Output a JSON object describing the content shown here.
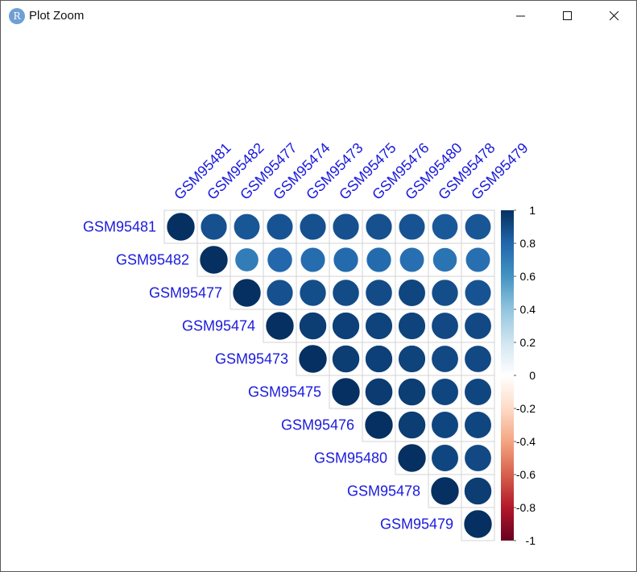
{
  "window": {
    "title": "Plot Zoom",
    "app_icon_letter": "R",
    "minimize_icon": "minimize-icon",
    "maximize_icon": "maximize-icon",
    "close_icon": "close-icon"
  },
  "colors": {
    "label_color": "#1b1bdc",
    "grid": "#d3d3d3",
    "palette_negative_end": "#67001f",
    "palette_mid": "#f7f7f7",
    "palette_positive_end": "#053061"
  },
  "chart_data": {
    "type": "heatmap",
    "style": "corrplot-circle-upper",
    "title": "",
    "labels": [
      "GSM95481",
      "GSM95482",
      "GSM95477",
      "GSM95474",
      "GSM95473",
      "GSM95475",
      "GSM95476",
      "GSM95480",
      "GSM95478",
      "GSM95479"
    ],
    "matrix": [
      [
        1.0,
        0.88,
        0.86,
        0.87,
        0.88,
        0.88,
        0.88,
        0.87,
        0.85,
        0.86
      ],
      [
        null,
        1.0,
        0.7,
        0.79,
        0.77,
        0.78,
        0.78,
        0.76,
        0.74,
        0.76
      ],
      [
        null,
        null,
        1.0,
        0.88,
        0.89,
        0.9,
        0.9,
        0.92,
        0.89,
        0.87
      ],
      [
        null,
        null,
        null,
        1.0,
        0.95,
        0.94,
        0.93,
        0.93,
        0.91,
        0.91
      ],
      [
        null,
        null,
        null,
        null,
        1.0,
        0.95,
        0.94,
        0.93,
        0.91,
        0.91
      ],
      [
        null,
        null,
        null,
        null,
        null,
        1.0,
        0.96,
        0.95,
        0.92,
        0.92
      ],
      [
        null,
        null,
        null,
        null,
        null,
        null,
        1.0,
        0.95,
        0.92,
        0.92
      ],
      [
        null,
        null,
        null,
        null,
        null,
        null,
        null,
        1.0,
        0.92,
        0.91
      ],
      [
        null,
        null,
        null,
        null,
        null,
        null,
        null,
        null,
        1.0,
        0.95
      ],
      [
        null,
        null,
        null,
        null,
        null,
        null,
        null,
        null,
        null,
        1.0
      ]
    ],
    "colorbar": {
      "range": [
        -1,
        1
      ],
      "ticks": [
        "1",
        "0.8",
        "0.6",
        "0.4",
        "0.2",
        "0",
        "-0.2",
        "-0.4",
        "-0.6",
        "-0.8",
        "-1"
      ],
      "tick_values": [
        1,
        0.8,
        0.6,
        0.4,
        0.2,
        0,
        -0.2,
        -0.4,
        -0.6,
        -0.8,
        -1
      ]
    }
  }
}
